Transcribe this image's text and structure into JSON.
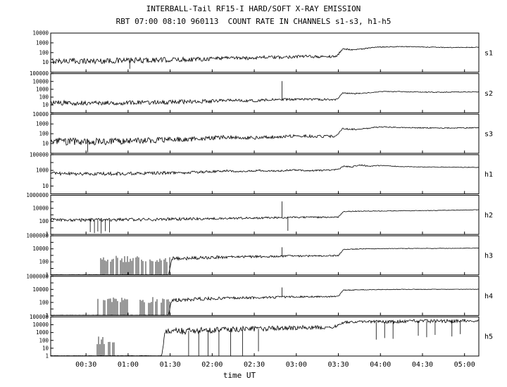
{
  "chart_data": {
    "type": "line",
    "title": "INTERBALL-Tail RF15-I HARD/SOFT X-RAY EMISSION",
    "subtitle": "RBT 07:00 08:10 960113  COUNT RATE IN CHANNELS s1-s3, h1-h5",
    "xlabel": "time UT",
    "ink_color": "#000000",
    "background_color": "#ffffff",
    "x_range_hours": [
      0.08,
      5.17
    ],
    "x_ticks": [
      {
        "h": 0.5,
        "label": "00:30"
      },
      {
        "h": 1.0,
        "label": "01:00"
      },
      {
        "h": 1.5,
        "label": "01:30"
      },
      {
        "h": 2.0,
        "label": "02:00"
      },
      {
        "h": 2.5,
        "label": "02:30"
      },
      {
        "h": 3.0,
        "label": "03:00"
      },
      {
        "h": 3.5,
        "label": "03:30"
      },
      {
        "h": 4.0,
        "label": "04:00"
      },
      {
        "h": 4.5,
        "label": "04:30"
      },
      {
        "h": 5.0,
        "label": "05:00"
      }
    ],
    "panels": [
      {
        "name": "s1",
        "log_min": 0,
        "log_max": 4,
        "ytick_labels": [
          "10000",
          "1000",
          "100",
          "10"
        ],
        "ytick_logs": [
          4,
          3,
          2,
          1
        ],
        "baseline": [
          [
            0.08,
            1.15,
            0.3
          ],
          [
            0.6,
            1.15,
            0.3
          ],
          [
            1.2,
            1.22,
            0.28
          ],
          [
            1.7,
            1.3,
            0.25
          ],
          [
            2.0,
            1.4,
            0.22
          ],
          [
            2.2,
            1.52,
            0.18
          ],
          [
            2.4,
            1.42,
            0.18
          ],
          [
            2.6,
            1.55,
            0.16
          ],
          [
            2.8,
            1.5,
            0.16
          ],
          [
            3.0,
            1.62,
            0.15
          ],
          [
            3.3,
            1.58,
            0.13
          ],
          [
            3.48,
            1.62,
            0.12
          ],
          [
            3.55,
            2.38,
            0.07
          ],
          [
            3.7,
            2.3,
            0.08
          ],
          [
            3.85,
            2.45,
            0.06
          ],
          [
            4.0,
            2.58,
            0.05
          ],
          [
            4.25,
            2.62,
            0.04
          ],
          [
            4.55,
            2.56,
            0.04
          ],
          [
            4.85,
            2.52,
            0.04
          ],
          [
            5.17,
            2.55,
            0.04
          ]
        ],
        "spikes": [
          [
            1.02,
            0.35
          ]
        ],
        "bursts": []
      },
      {
        "name": "s2",
        "log_min": 0,
        "log_max": 5,
        "ytick_labels": [
          "100000",
          "10000",
          "1000",
          "100",
          "10"
        ],
        "ytick_logs": [
          5,
          4,
          3,
          2,
          1
        ],
        "baseline": [
          [
            0.08,
            1.25,
            0.32
          ],
          [
            0.6,
            1.25,
            0.3
          ],
          [
            1.2,
            1.3,
            0.28
          ],
          [
            1.7,
            1.4,
            0.25
          ],
          [
            2.0,
            1.5,
            0.22
          ],
          [
            2.2,
            1.62,
            0.18
          ],
          [
            2.45,
            1.52,
            0.18
          ],
          [
            2.7,
            1.65,
            0.16
          ],
          [
            3.0,
            1.72,
            0.15
          ],
          [
            3.3,
            1.68,
            0.13
          ],
          [
            3.48,
            1.7,
            0.12
          ],
          [
            3.55,
            2.52,
            0.08
          ],
          [
            3.7,
            2.45,
            0.08
          ],
          [
            3.85,
            2.55,
            0.06
          ],
          [
            4.0,
            2.72,
            0.05
          ],
          [
            4.35,
            2.68,
            0.05
          ],
          [
            4.65,
            2.62,
            0.05
          ],
          [
            5.17,
            2.68,
            0.05
          ]
        ],
        "spikes": [
          [
            2.83,
            4.05
          ]
        ],
        "bursts": []
      },
      {
        "name": "s3",
        "log_min": 0,
        "log_max": 4,
        "ytick_labels": [
          "10000",
          "1000",
          "100",
          "10"
        ],
        "ytick_logs": [
          4,
          3,
          2,
          1
        ],
        "baseline": [
          [
            0.08,
            1.22,
            0.38
          ],
          [
            0.6,
            1.18,
            0.36
          ],
          [
            1.2,
            1.3,
            0.3
          ],
          [
            1.7,
            1.42,
            0.26
          ],
          [
            2.0,
            1.55,
            0.22
          ],
          [
            2.2,
            1.68,
            0.18
          ],
          [
            2.5,
            1.58,
            0.18
          ],
          [
            2.8,
            1.72,
            0.16
          ],
          [
            3.0,
            1.78,
            0.15
          ],
          [
            3.3,
            1.72,
            0.13
          ],
          [
            3.48,
            1.75,
            0.12
          ],
          [
            3.55,
            2.52,
            0.08
          ],
          [
            3.7,
            2.45,
            0.08
          ],
          [
            3.85,
            2.55,
            0.06
          ],
          [
            4.0,
            2.7,
            0.05
          ],
          [
            4.35,
            2.62,
            0.05
          ],
          [
            4.75,
            2.58,
            0.05
          ],
          [
            5.17,
            2.62,
            0.05
          ]
        ],
        "spikes": [
          [
            0.52,
            0.1
          ]
        ],
        "bursts": []
      },
      {
        "name": "h1",
        "log_min": 0,
        "log_max": 5,
        "ytick_labels": [
          "100000",
          "1000",
          "10"
        ],
        "ytick_logs": [
          5,
          3,
          1
        ],
        "baseline": [
          [
            0.08,
            2.6,
            0.22
          ],
          [
            0.6,
            2.55,
            0.22
          ],
          [
            1.2,
            2.62,
            0.2
          ],
          [
            1.7,
            2.72,
            0.18
          ],
          [
            1.95,
            2.82,
            0.16
          ],
          [
            2.15,
            2.95,
            0.13
          ],
          [
            2.35,
            2.82,
            0.13
          ],
          [
            2.55,
            3.0,
            0.11
          ],
          [
            2.75,
            2.9,
            0.11
          ],
          [
            2.95,
            3.05,
            0.1
          ],
          [
            3.15,
            2.95,
            0.1
          ],
          [
            3.35,
            3.02,
            0.09
          ],
          [
            3.5,
            3.1,
            0.08
          ],
          [
            3.56,
            3.52,
            0.07
          ],
          [
            3.66,
            3.42,
            0.09
          ],
          [
            3.76,
            3.7,
            0.07
          ],
          [
            3.86,
            3.52,
            0.09
          ],
          [
            4.0,
            3.62,
            0.05
          ],
          [
            4.25,
            3.48,
            0.04
          ],
          [
            4.65,
            3.42,
            0.04
          ],
          [
            5.17,
            3.38,
            0.04
          ]
        ],
        "spikes": [],
        "bursts": []
      },
      {
        "name": "h2",
        "log_min": 0,
        "log_max": 6,
        "ytick_labels": [
          "1000000",
          "10000",
          "100",
          "1"
        ],
        "ytick_logs": [
          6,
          4,
          2,
          0
        ],
        "baseline": [
          [
            0.08,
            2.2,
            0.28
          ],
          [
            0.6,
            2.22,
            0.26
          ],
          [
            1.2,
            2.28,
            0.24
          ],
          [
            1.7,
            2.35,
            0.22
          ],
          [
            2.1,
            2.45,
            0.18
          ],
          [
            2.5,
            2.52,
            0.16
          ],
          [
            2.8,
            2.58,
            0.14
          ],
          [
            3.1,
            2.62,
            0.13
          ],
          [
            3.35,
            2.62,
            0.11
          ],
          [
            3.5,
            2.65,
            0.1
          ],
          [
            3.56,
            3.52,
            0.07
          ],
          [
            3.85,
            3.58,
            0.05
          ],
          [
            4.25,
            3.62,
            0.04
          ],
          [
            4.75,
            3.68,
            0.04
          ],
          [
            5.17,
            3.78,
            0.04
          ]
        ],
        "spikes": [
          [
            0.55,
            0.35
          ],
          [
            0.6,
            0.2
          ],
          [
            0.64,
            0.45
          ],
          [
            0.68,
            0.15
          ],
          [
            0.73,
            0.5
          ],
          [
            0.78,
            0.3
          ],
          [
            2.83,
            5.05
          ],
          [
            2.9,
            0.55
          ]
        ],
        "bursts": []
      },
      {
        "name": "h3",
        "log_min": 0,
        "log_max": 6,
        "ytick_labels": [
          "1000000",
          "10000",
          "100",
          "1"
        ],
        "ytick_logs": [
          6,
          4,
          2,
          0
        ],
        "baseline": [
          [
            0.08,
            0.04,
            0.02
          ],
          [
            1.48,
            0.04,
            0.02
          ],
          [
            1.52,
            2.5,
            0.3
          ],
          [
            1.8,
            2.6,
            0.26
          ],
          [
            2.05,
            2.7,
            0.22
          ],
          [
            2.3,
            2.76,
            0.2
          ],
          [
            2.6,
            2.82,
            0.18
          ],
          [
            2.95,
            2.9,
            0.15
          ],
          [
            3.3,
            2.92,
            0.12
          ],
          [
            3.5,
            2.95,
            0.1
          ],
          [
            3.56,
            3.92,
            0.07
          ],
          [
            3.85,
            4.02,
            0.05
          ],
          [
            4.25,
            4.06,
            0.04
          ],
          [
            4.75,
            4.08,
            0.03
          ],
          [
            5.17,
            4.1,
            0.03
          ]
        ],
        "spikes": [
          [
            2.83,
            4.25
          ]
        ],
        "bursts": [
          {
            "x0": 0.67,
            "x1": 1.5,
            "top_log": 2.45,
            "floor_log": 0.04,
            "density": 0.75
          }
        ]
      },
      {
        "name": "h4",
        "log_min": 0,
        "log_max": 6,
        "ytick_labels": [
          "1000000",
          "10000",
          "100",
          "1"
        ],
        "ytick_logs": [
          6,
          4,
          2,
          0
        ],
        "baseline": [
          [
            0.08,
            0.04,
            0.02
          ],
          [
            1.48,
            0.04,
            0.02
          ],
          [
            1.52,
            2.4,
            0.34
          ],
          [
            1.8,
            2.52,
            0.28
          ],
          [
            2.05,
            2.62,
            0.24
          ],
          [
            2.3,
            2.7,
            0.2
          ],
          [
            2.6,
            2.76,
            0.18
          ],
          [
            2.95,
            2.86,
            0.15
          ],
          [
            3.3,
            2.9,
            0.12
          ],
          [
            3.5,
            2.92,
            0.1
          ],
          [
            3.56,
            3.88,
            0.07
          ],
          [
            3.85,
            3.96,
            0.05
          ],
          [
            4.25,
            4.0,
            0.04
          ],
          [
            4.75,
            4.02,
            0.03
          ],
          [
            5.17,
            4.02,
            0.03
          ]
        ],
        "spikes": [
          [
            2.83,
            4.3
          ]
        ],
        "bursts": [
          {
            "x0": 0.62,
            "x1": 1.04,
            "top_log": 2.4,
            "floor_log": 0.04,
            "density": 0.7
          },
          {
            "x0": 1.14,
            "x1": 1.5,
            "top_log": 2.4,
            "floor_log": 0.04,
            "density": 0.7
          }
        ]
      },
      {
        "name": "h5",
        "log_min": 0,
        "log_max": 5,
        "ytick_labels": [
          "100000",
          "10000",
          "1000",
          "100",
          "10",
          "1"
        ],
        "ytick_logs": [
          5,
          4,
          3,
          2,
          1,
          0
        ],
        "baseline": [
          [
            0.08,
            0.04,
            0.02
          ],
          [
            1.4,
            0.04,
            0.02
          ],
          [
            1.44,
            3.15,
            0.45
          ],
          [
            1.7,
            3.2,
            0.42
          ],
          [
            2.0,
            3.3,
            0.4
          ],
          [
            2.4,
            3.45,
            0.35
          ],
          [
            2.8,
            3.55,
            0.3
          ],
          [
            3.2,
            3.65,
            0.26
          ],
          [
            3.45,
            3.72,
            0.22
          ],
          [
            3.56,
            4.3,
            0.18
          ],
          [
            3.8,
            4.42,
            0.16
          ],
          [
            4.1,
            4.35,
            0.2
          ],
          [
            4.4,
            4.48,
            0.22
          ],
          [
            4.7,
            4.45,
            0.24
          ],
          [
            5.0,
            4.5,
            0.2
          ],
          [
            5.17,
            4.48,
            0.12
          ]
        ],
        "spikes": [
          [
            1.72,
            0.05
          ],
          [
            1.84,
            0.05
          ],
          [
            1.95,
            0.05
          ],
          [
            2.08,
            0.05
          ],
          [
            2.22,
            0.05
          ],
          [
            2.36,
            0.05
          ],
          [
            2.55,
            0.6
          ],
          [
            3.95,
            2.1
          ],
          [
            4.05,
            2.3
          ],
          [
            4.15,
            2.2
          ],
          [
            4.45,
            2.6
          ],
          [
            4.55,
            2.4
          ],
          [
            4.65,
            2.7
          ],
          [
            4.85,
            2.5
          ],
          [
            4.95,
            2.8
          ]
        ],
        "bursts": [
          {
            "x0": 0.63,
            "x1": 0.72,
            "top_log": 2.0,
            "floor_log": 0.04,
            "density": 0.8
          },
          {
            "x0": 0.76,
            "x1": 0.84,
            "top_log": 1.9,
            "floor_log": 0.04,
            "density": 0.8
          }
        ]
      }
    ]
  }
}
